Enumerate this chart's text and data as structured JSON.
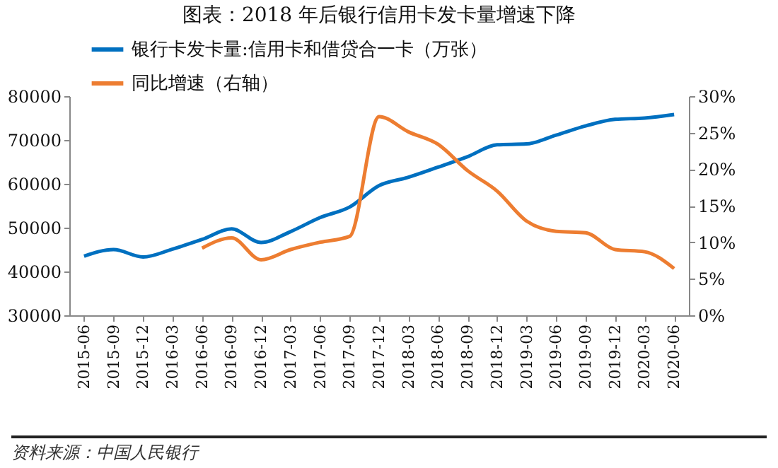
{
  "chart_data": {
    "type": "line",
    "title": "图表：2018 年后银行信用卡发卡量增速下降",
    "categories": [
      "2015-06",
      "2015-09",
      "2015-12",
      "2016-03",
      "2016-06",
      "2016-09",
      "2016-12",
      "2017-03",
      "2017-06",
      "2017-09",
      "2017-12",
      "2018-03",
      "2018-06",
      "2018-09",
      "2018-12",
      "2019-03",
      "2019-06",
      "2019-09",
      "2019-12",
      "2020-03",
      "2020-06"
    ],
    "series": [
      {
        "name": "银行卡发卡量:信用卡和借贷合一卡（万张）",
        "color": "#0070c0",
        "values": [
          43500,
          45000,
          43300,
          45100,
          47300,
          49700,
          46600,
          49100,
          52300,
          54700,
          59600,
          61500,
          63800,
          66200,
          68900,
          69100,
          71100,
          73200,
          74700,
          75000,
          75800
        ]
      },
      {
        "name": "同比增速（右轴）",
        "color": "#ed7d31",
        "axis": "y2",
        "values": [
          null,
          null,
          null,
          null,
          9.2,
          10.6,
          7.6,
          9.0,
          10.0,
          10.8,
          27.2,
          25.1,
          23.4,
          19.8,
          17.0,
          12.9,
          11.5,
          11.3,
          9.0,
          8.7,
          6.4
        ]
      }
    ],
    "ylim": [
      30000,
      80000
    ],
    "yticks": [
      30000,
      40000,
      50000,
      60000,
      70000,
      80000
    ],
    "y2lim": [
      0,
      30
    ],
    "y2ticks": [
      {
        "value": 0,
        "label": "0%"
      },
      {
        "value": 5,
        "label": "5%"
      },
      {
        "value": 10,
        "label": "10%"
      },
      {
        "value": 15,
        "label": "15%"
      },
      {
        "value": 20,
        "label": "20%"
      },
      {
        "value": 25,
        "label": "25%"
      },
      {
        "value": 30,
        "label": "30%"
      }
    ],
    "grid": false,
    "legend": "top left",
    "marker": "none",
    "line_style": "solid",
    "annotations": [
      "资料来源：中国人民银行"
    ]
  }
}
